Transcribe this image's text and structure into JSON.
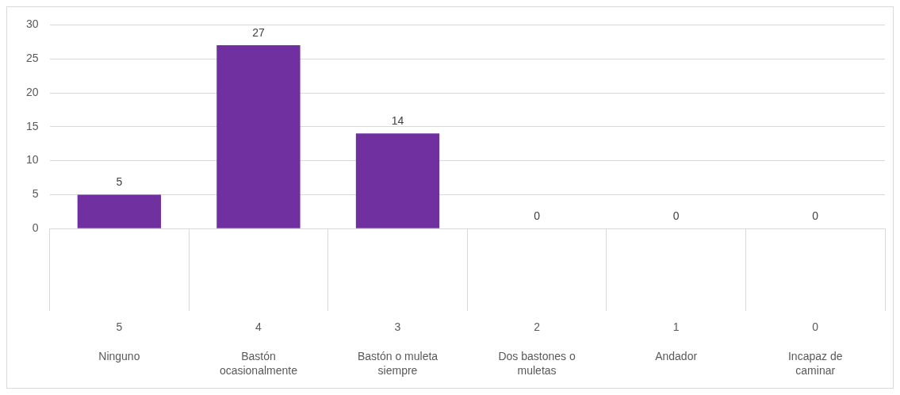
{
  "chart_data": {
    "type": "bar",
    "categories": [
      "5\nNinguno",
      "4\nBastón ocasionalmente",
      "3\nBastón o muleta siempre",
      "2\nDos bastones o muletas",
      "1\nAndador",
      "0\nIncapaz de caminar"
    ],
    "values": [
      5,
      27,
      14,
      0,
      0,
      0
    ],
    "color": "#7030a0",
    "ylim": [
      0,
      30
    ],
    "yticks": [
      0,
      5,
      10,
      15,
      20,
      25,
      30
    ],
    "grid": "y",
    "legend": false,
    "data_labels": true
  }
}
